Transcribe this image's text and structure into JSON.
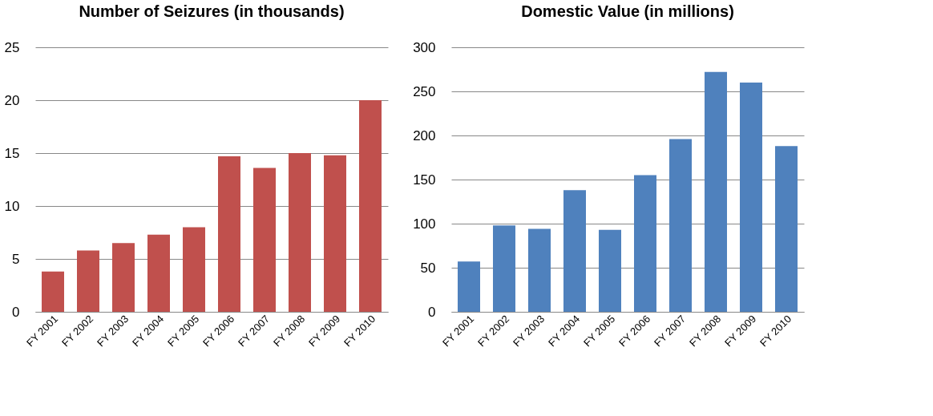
{
  "chart_data": [
    {
      "type": "bar",
      "title": "Number of Seizures (in thousands)",
      "categories": [
        "FY 2001",
        "FY 2002",
        "FY 2003",
        "FY 2004",
        "FY 2005",
        "FY 2006",
        "FY 2007",
        "FY 2008",
        "FY 2009",
        "FY 2010"
      ],
      "values": [
        3.8,
        5.8,
        6.5,
        7.3,
        8.0,
        14.7,
        13.6,
        15.0,
        14.8,
        20.0
      ],
      "color": "#c0504d",
      "ylim": [
        0,
        25
      ],
      "yticks": [
        0,
        5,
        10,
        15,
        20,
        25
      ],
      "grid": "y"
    },
    {
      "type": "bar",
      "title": "Domestic Value (in millions)",
      "categories": [
        "FY 2001",
        "FY 2002",
        "FY 2003",
        "FY 2004",
        "FY 2005",
        "FY 2006",
        "FY 2007",
        "FY 2008",
        "FY 2009",
        "FY 2010"
      ],
      "values": [
        57,
        98,
        94,
        138,
        93,
        155,
        196,
        272,
        260,
        188
      ],
      "color": "#4f81bd",
      "ylim": [
        0,
        300
      ],
      "yticks": [
        0,
        50,
        100,
        150,
        200,
        250,
        300
      ],
      "grid": "y"
    }
  ]
}
